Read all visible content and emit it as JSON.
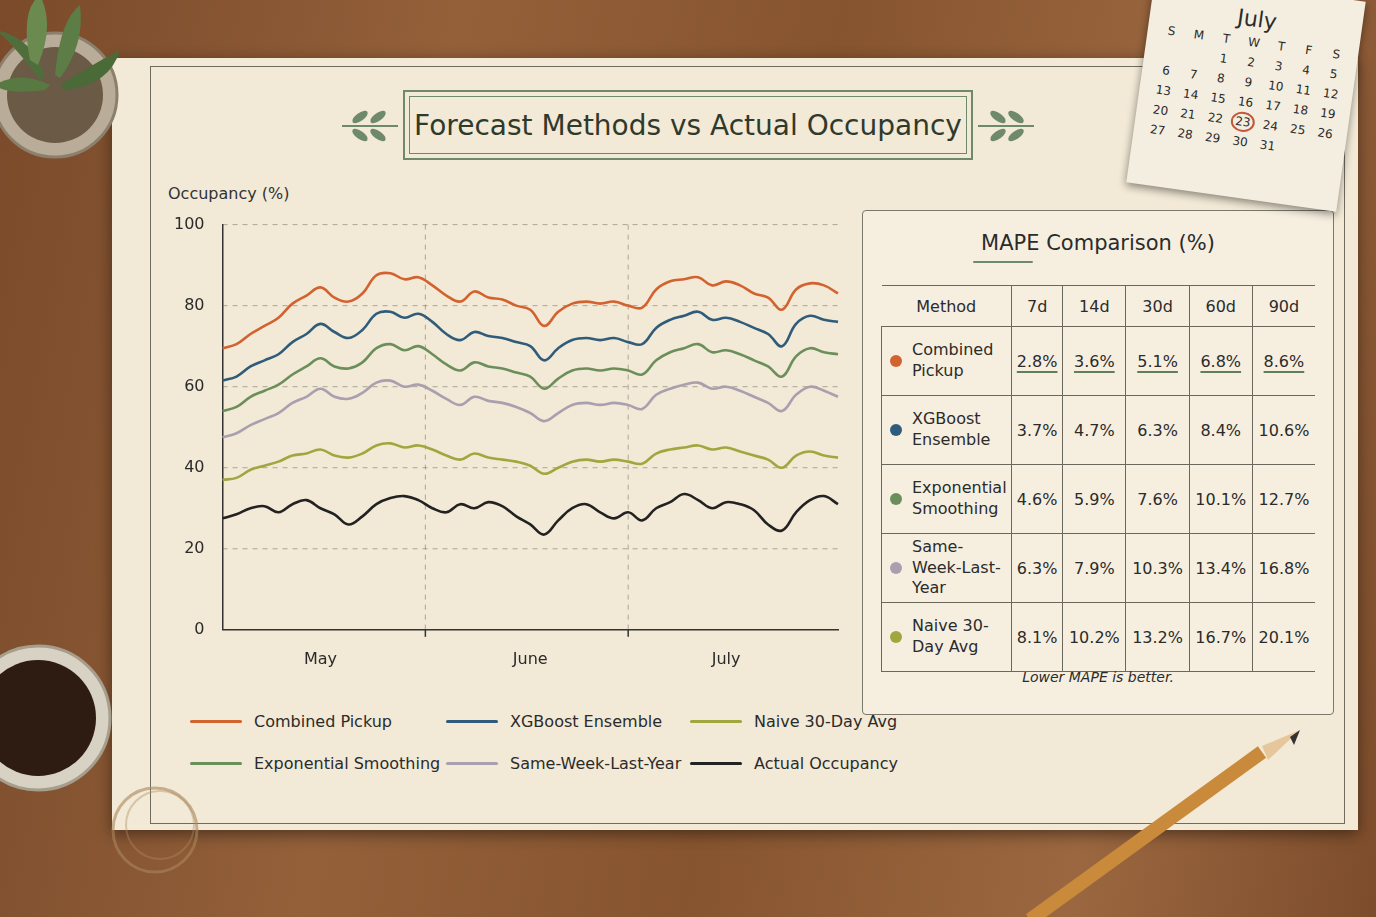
{
  "chart_data": {
    "type": "line",
    "title": "Forecast Methods vs Actual Occupancy",
    "y_label": "Occupancy (%)",
    "categories": [
      null,
      null,
      null,
      null,
      null,
      null,
      null,
      "May",
      null,
      null,
      null,
      null,
      null,
      null,
      null,
      null,
      null,
      null,
      null,
      null,
      null,
      null,
      "June",
      null,
      null,
      null,
      null,
      null,
      null,
      null,
      null,
      null,
      null,
      null,
      null,
      null,
      "July",
      null,
      null,
      null,
      null,
      null,
      null,
      null,
      null
    ],
    "series": [
      {
        "name": "Combined Pickup",
        "color": "#d2622f",
        "values": [
          69.5,
          70.5,
          73,
          75,
          77,
          80.5,
          82.5,
          84.5,
          82,
          81,
          83,
          87.5,
          88,
          86.5,
          87,
          85,
          82.5,
          81,
          83.5,
          82,
          81.5,
          80,
          79,
          75,
          78.5,
          80.5,
          81,
          80.5,
          81,
          80,
          79.5,
          84,
          86,
          86.5,
          87,
          85,
          86,
          85,
          83,
          82,
          79,
          84,
          85.5,
          85,
          83
        ]
      },
      {
        "name": "Exponential Smoothing",
        "color": "#6b8f5a",
        "values": [
          54,
          55,
          57.5,
          59,
          60.5,
          63,
          65,
          67,
          65,
          64.5,
          66,
          69.5,
          70.5,
          69,
          70,
          68,
          65.5,
          64,
          66,
          65,
          64.5,
          63.5,
          62.5,
          59.5,
          62,
          64,
          64.5,
          64,
          64.5,
          64,
          63,
          66.5,
          68.5,
          69.5,
          70.5,
          68.5,
          69,
          68,
          66.5,
          65,
          62.5,
          67.5,
          69.5,
          68.5,
          68
        ]
      },
      {
        "name": "XGBoost Ensemble",
        "color": "#2e5c7a",
        "values": [
          61.5,
          62.5,
          65,
          66.5,
          68,
          71,
          73,
          75.5,
          73.5,
          72,
          74,
          78,
          78.5,
          77,
          78,
          76,
          73,
          71.5,
          73.5,
          72.5,
          72,
          71,
          70,
          66.5,
          69.5,
          71.5,
          72,
          71.5,
          72,
          71,
          70.5,
          74.5,
          76.5,
          77.5,
          78.5,
          76.5,
          77,
          76,
          74.5,
          73,
          70,
          75.5,
          77.5,
          76.5,
          76
        ]
      },
      {
        "name": "Same-Week-Last-Year",
        "color": "#a99faf",
        "values": [
          47.5,
          48.5,
          50.5,
          52,
          53.5,
          56,
          57.5,
          59.5,
          57.5,
          57,
          58.5,
          61,
          61.5,
          60,
          60.5,
          59,
          57,
          55.5,
          57.5,
          56.5,
          56,
          55,
          53.5,
          51.5,
          53.5,
          55.5,
          56,
          55.5,
          56,
          55.5,
          54.5,
          58,
          59.5,
          60.5,
          61,
          59.5,
          60,
          59,
          57.5,
          56,
          54,
          58,
          60,
          59,
          57.5
        ]
      },
      {
        "name": "Naive 30-Day Avg",
        "color": "#a3a63f",
        "values": [
          37,
          37.5,
          39.5,
          40.5,
          41.5,
          43,
          43.5,
          44.5,
          43,
          42.5,
          43.5,
          45.5,
          46,
          45,
          45.5,
          44.5,
          43,
          42,
          43.5,
          42.5,
          42,
          41.5,
          40.5,
          38.5,
          40,
          41.5,
          42,
          41.5,
          42,
          41.5,
          41,
          43.5,
          44.5,
          45,
          45.5,
          44.5,
          45,
          44,
          43,
          42,
          40,
          43,
          44,
          43,
          42.5
        ]
      },
      {
        "name": "Actual Occupancy",
        "color": "#222222",
        "values": [
          27.5,
          28.5,
          30,
          30.5,
          29,
          31,
          32,
          30,
          28.5,
          26,
          28,
          31,
          32.5,
          33,
          32,
          30,
          29,
          31,
          30,
          31.5,
          30.5,
          28,
          26,
          23.5,
          27,
          30,
          31,
          29,
          27.5,
          29,
          27,
          30,
          31.5,
          33.5,
          32,
          30,
          31.5,
          31,
          29.5,
          26,
          24.5,
          29,
          32,
          33,
          31
        ]
      }
    ],
    "ylim": [
      0,
      100
    ],
    "yticks": [
      0,
      20,
      40,
      60,
      80,
      100
    ],
    "grid": true,
    "legend": "bottom"
  },
  "table": {
    "title": "MAPE Comparison (%)",
    "columns": [
      "Method",
      "7d",
      "14d",
      "30d",
      "60d",
      "90d"
    ],
    "rows": [
      {
        "method": "Combined Pickup",
        "color": "#d2622f",
        "values": [
          "2.8%",
          "3.6%",
          "5.1%",
          "6.8%",
          "8.6%"
        ]
      },
      {
        "method": "XGBoost Ensemble",
        "color": "#2e5c7a",
        "values": [
          "3.7%",
          "4.7%",
          "6.3%",
          "8.4%",
          "10.6%"
        ]
      },
      {
        "method": "Exponential Smoothing",
        "color": "#6b8f5a",
        "values": [
          "4.6%",
          "5.9%",
          "7.6%",
          "10.1%",
          "12.7%"
        ]
      },
      {
        "method": "Same-Week-Last-Year",
        "color": "#a99faf",
        "values": [
          "6.3%",
          "7.9%",
          "10.3%",
          "13.4%",
          "16.8%"
        ]
      },
      {
        "method": "Naive 30-Day Avg",
        "color": "#a3a63f",
        "values": [
          "8.1%",
          "10.2%",
          "13.2%",
          "16.7%",
          "20.1%"
        ]
      }
    ],
    "note": "Lower MAPE is better."
  },
  "calendar": {
    "month": "July",
    "weekdays": [
      "S",
      "M",
      "T",
      "W",
      "T",
      "F",
      "S"
    ],
    "weeks": [
      [
        null,
        null,
        1,
        2,
        3,
        4,
        5
      ],
      [
        6,
        7,
        8,
        9,
        10,
        11,
        12
      ],
      [
        13,
        14,
        15,
        16,
        17,
        18,
        19
      ],
      [
        20,
        21,
        22,
        23,
        24,
        25,
        26
      ],
      [
        27,
        28,
        29,
        30,
        31,
        null,
        null
      ]
    ],
    "circled": 23
  }
}
